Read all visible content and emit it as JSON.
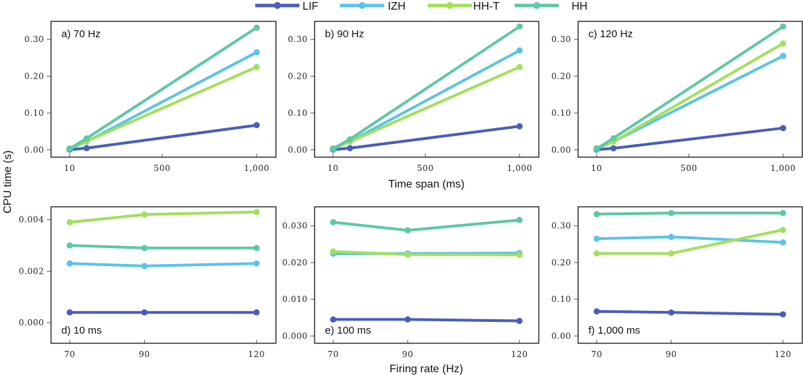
{
  "series_meta": [
    {
      "name": "LIF",
      "color": "#4a5dbb"
    },
    {
      "name": "IZH",
      "color": "#5bc3e8"
    },
    {
      "name": "HH-T",
      "color": "#a1e05b"
    },
    {
      "name": "HH",
      "color": "#5cc8a6"
    }
  ],
  "axis_titles": {
    "ylabel": "CPU time (s)",
    "top_xlabel": "Time span (ms)",
    "bottom_xlabel": "Firing rate (Hz)"
  },
  "chart_data": [
    {
      "type": "line",
      "title": "a) 70 Hz",
      "xlabel": "",
      "ylabel": "CPU time (s)",
      "x": [
        10,
        100,
        1000
      ],
      "xticks": [
        10,
        500,
        1000
      ],
      "xtick_labels": [
        "10",
        "500",
        "1,000"
      ],
      "yticks": [
        0.0,
        0.1,
        0.2,
        0.3
      ],
      "ytick_labels": [
        "0.00",
        "0.10",
        "0.20",
        "0.30"
      ],
      "xlim": [
        -88,
        1102
      ],
      "ylim": [
        -0.02,
        0.349
      ],
      "label_position": "top-left",
      "series": [
        {
          "name": "LIF",
          "values": [
            0.0004,
            0.0045,
            0.067
          ]
        },
        {
          "name": "IZH",
          "values": [
            0.0023,
            0.0224,
            0.265
          ]
        },
        {
          "name": "HH-T",
          "values": [
            0.0039,
            0.023,
            0.225
          ]
        },
        {
          "name": "HH",
          "values": [
            0.003,
            0.031,
            0.332
          ]
        }
      ]
    },
    {
      "type": "line",
      "title": "b) 90 Hz",
      "xlabel": "Time span (ms)",
      "ylabel": "",
      "x": [
        10,
        100,
        1000
      ],
      "xticks": [
        10,
        500,
        1000
      ],
      "xtick_labels": [
        "10",
        "500",
        "1,000"
      ],
      "yticks": [
        0.0,
        0.1,
        0.2,
        0.3
      ],
      "ytick_labels": [
        "0.00",
        "0.10",
        "0.20",
        "0.30"
      ],
      "xlim": [
        -88,
        1102
      ],
      "ylim": [
        -0.02,
        0.349
      ],
      "label_position": "top-left",
      "series": [
        {
          "name": "LIF",
          "values": [
            0.0004,
            0.0045,
            0.064
          ]
        },
        {
          "name": "IZH",
          "values": [
            0.0022,
            0.0225,
            0.27
          ]
        },
        {
          "name": "HH-T",
          "values": [
            0.0042,
            0.0222,
            0.225
          ]
        },
        {
          "name": "HH",
          "values": [
            0.0029,
            0.0288,
            0.335
          ]
        }
      ]
    },
    {
      "type": "line",
      "title": "c) 120 Hz",
      "xlabel": "",
      "ylabel": "",
      "x": [
        10,
        100,
        1000
      ],
      "xticks": [
        10,
        500,
        1000
      ],
      "xtick_labels": [
        "10",
        "500",
        "1,000"
      ],
      "yticks": [
        0.0,
        0.1,
        0.2,
        0.3
      ],
      "ytick_labels": [
        "0.00",
        "0.10",
        "0.20",
        "0.30"
      ],
      "xlim": [
        -88,
        1102
      ],
      "ylim": [
        -0.02,
        0.349
      ],
      "label_position": "top-left",
      "series": [
        {
          "name": "LIF",
          "values": [
            0.0004,
            0.0041,
            0.059
          ]
        },
        {
          "name": "IZH",
          "values": [
            0.0023,
            0.0226,
            0.255
          ]
        },
        {
          "name": "HH-T",
          "values": [
            0.0043,
            0.0221,
            0.289
          ]
        },
        {
          "name": "HH",
          "values": [
            0.0029,
            0.0316,
            0.335
          ]
        }
      ]
    },
    {
      "type": "line",
      "title": "d) 10 ms",
      "xlabel": "",
      "ylabel": "",
      "x": [
        70,
        90,
        120
      ],
      "xticks": [
        70,
        90,
        120
      ],
      "xtick_labels": [
        "70",
        "90",
        "120"
      ],
      "yticks": [
        0.0,
        0.002,
        0.004
      ],
      "ytick_labels": [
        "0.000",
        "0.002",
        "0.004"
      ],
      "xlim": [
        65,
        125.2
      ],
      "ylim": [
        -0.0008,
        0.0045
      ],
      "label_position": "bottom-left",
      "series": [
        {
          "name": "LIF",
          "values": [
            0.0004,
            0.0004,
            0.0004
          ]
        },
        {
          "name": "IZH",
          "values": [
            0.0023,
            0.0022,
            0.0023
          ]
        },
        {
          "name": "HH-T",
          "values": [
            0.0039,
            0.0042,
            0.0043
          ]
        },
        {
          "name": "HH",
          "values": [
            0.003,
            0.0029,
            0.0029
          ]
        }
      ]
    },
    {
      "type": "line",
      "title": "e) 100 ms",
      "xlabel": "Firing rate (Hz)",
      "ylabel": "",
      "x": [
        70,
        90,
        120
      ],
      "xticks": [
        70,
        90,
        120
      ],
      "xtick_labels": [
        "70",
        "90",
        "120"
      ],
      "yticks": [
        0.0,
        0.01,
        0.02,
        0.03
      ],
      "ytick_labels": [
        "0.000",
        "0.010",
        "0.020",
        "0.030"
      ],
      "xlim": [
        65,
        125.2
      ],
      "ylim": [
        -0.002,
        0.0352
      ],
      "label_position": "bottom-left",
      "series": [
        {
          "name": "LIF",
          "values": [
            0.0045,
            0.0045,
            0.0041
          ]
        },
        {
          "name": "IZH",
          "values": [
            0.0224,
            0.0225,
            0.0226
          ]
        },
        {
          "name": "HH-T",
          "values": [
            0.023,
            0.0222,
            0.0221
          ]
        },
        {
          "name": "HH",
          "values": [
            0.031,
            0.0288,
            0.0316
          ]
        }
      ]
    },
    {
      "type": "line",
      "title": "f) 1,000 ms",
      "xlabel": "",
      "ylabel": "",
      "x": [
        70,
        90,
        120
      ],
      "xticks": [
        70,
        90,
        120
      ],
      "xtick_labels": [
        "70",
        "90",
        "120"
      ],
      "yticks": [
        0.0,
        0.1,
        0.2,
        0.3
      ],
      "ytick_labels": [
        "0.00",
        "0.10",
        "0.20",
        "0.30"
      ],
      "xlim": [
        65,
        125.2
      ],
      "ylim": [
        -0.02,
        0.352
      ],
      "label_position": "bottom-left",
      "series": [
        {
          "name": "LIF",
          "values": [
            0.067,
            0.064,
            0.059
          ]
        },
        {
          "name": "IZH",
          "values": [
            0.265,
            0.27,
            0.255
          ]
        },
        {
          "name": "HH-T",
          "values": [
            0.225,
            0.225,
            0.289
          ]
        },
        {
          "name": "HH",
          "values": [
            0.332,
            0.335,
            0.335
          ]
        }
      ]
    }
  ]
}
